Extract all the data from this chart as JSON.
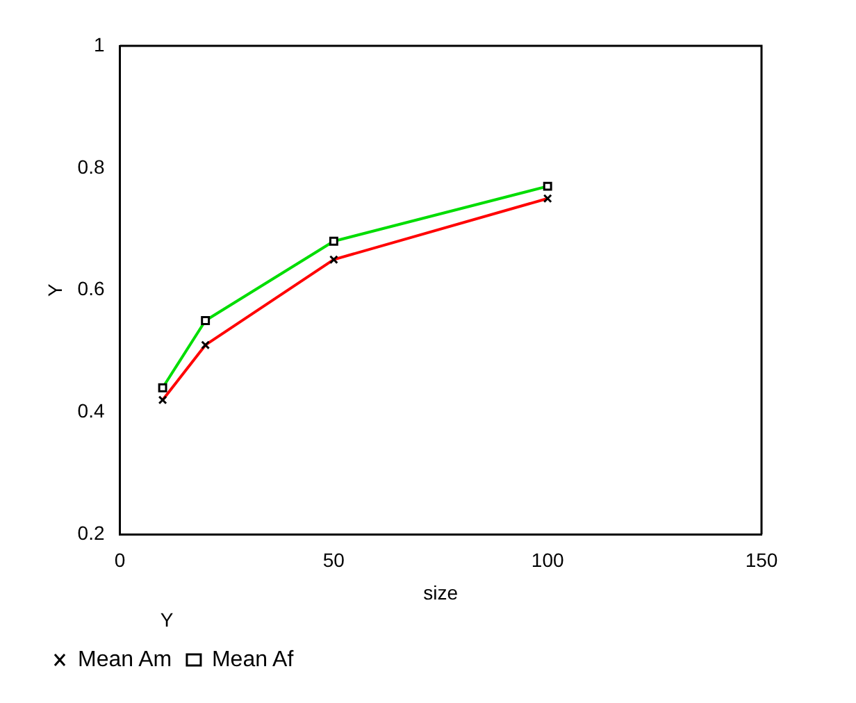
{
  "chart_data": {
    "type": "line",
    "xlabel": "size",
    "ylabel": "Y",
    "legend_title": "Y",
    "x": [
      10,
      20,
      50,
      100
    ],
    "series": [
      {
        "name": "Mean Am",
        "color": "#ff0000",
        "values": [
          0.42,
          0.51,
          0.65,
          0.75
        ],
        "marker": "cross"
      },
      {
        "name": "Mean Af",
        "color": "#00dd00",
        "values": [
          0.44,
          0.55,
          0.68,
          0.77
        ],
        "marker": "square"
      }
    ],
    "xlim": [
      0,
      150
    ],
    "xticks": [
      0,
      50,
      100,
      150
    ],
    "ylim": [
      0.2,
      1
    ],
    "yticks": [
      0.2,
      0.4,
      0.6,
      0.8,
      1
    ],
    "grid": false,
    "legend": "bottom left"
  }
}
